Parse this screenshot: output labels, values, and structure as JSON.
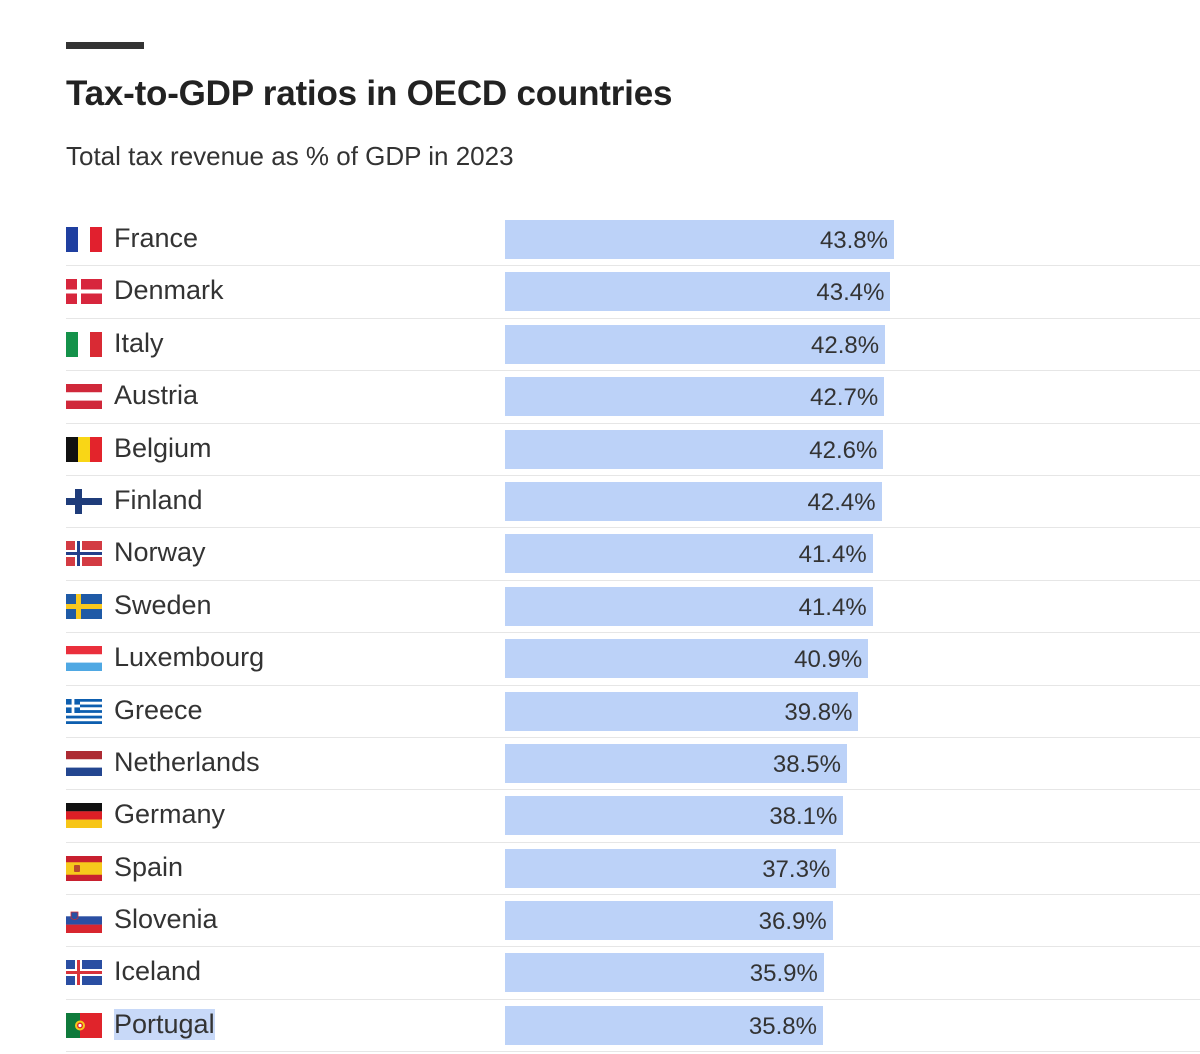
{
  "chart_data": {
    "type": "bar",
    "orientation": "horizontal",
    "title": "Tax-to-GDP ratios in OECD countries",
    "subtitle": "Total tax revenue as % of GDP in 2023",
    "value_suffix": "%",
    "bar_color": "#bcd2f8",
    "xlim": [
      0,
      43.8
    ],
    "rows": [
      {
        "country": "France",
        "value": 43.8,
        "label": "43.8%",
        "flag": "france-flag-icon"
      },
      {
        "country": "Denmark",
        "value": 43.4,
        "label": "43.4%",
        "flag": "denmark-flag-icon"
      },
      {
        "country": "Italy",
        "value": 42.8,
        "label": "42.8%",
        "flag": "italy-flag-icon"
      },
      {
        "country": "Austria",
        "value": 42.7,
        "label": "42.7%",
        "flag": "austria-flag-icon"
      },
      {
        "country": "Belgium",
        "value": 42.6,
        "label": "42.6%",
        "flag": "belgium-flag-icon"
      },
      {
        "country": "Finland",
        "value": 42.4,
        "label": "42.4%",
        "flag": "finland-flag-icon"
      },
      {
        "country": "Norway",
        "value": 41.4,
        "label": "41.4%",
        "flag": "norway-flag-icon"
      },
      {
        "country": "Sweden",
        "value": 41.4,
        "label": "41.4%",
        "flag": "sweden-flag-icon"
      },
      {
        "country": "Luxembourg",
        "value": 40.9,
        "label": "40.9%",
        "flag": "luxembourg-flag-icon"
      },
      {
        "country": "Greece",
        "value": 39.8,
        "label": "39.8%",
        "flag": "greece-flag-icon"
      },
      {
        "country": "Netherlands",
        "value": 38.5,
        "label": "38.5%",
        "flag": "netherlands-flag-icon"
      },
      {
        "country": "Germany",
        "value": 38.1,
        "label": "38.1%",
        "flag": "germany-flag-icon"
      },
      {
        "country": "Spain",
        "value": 37.3,
        "label": "37.3%",
        "flag": "spain-flag-icon"
      },
      {
        "country": "Slovenia",
        "value": 36.9,
        "label": "36.9%",
        "flag": "slovenia-flag-icon"
      },
      {
        "country": "Iceland",
        "value": 35.9,
        "label": "35.9%",
        "flag": "iceland-flag-icon"
      },
      {
        "country": "Portugal",
        "value": 35.8,
        "label": "35.8%",
        "flag": "portugal-flag-icon",
        "selected": true
      }
    ]
  }
}
